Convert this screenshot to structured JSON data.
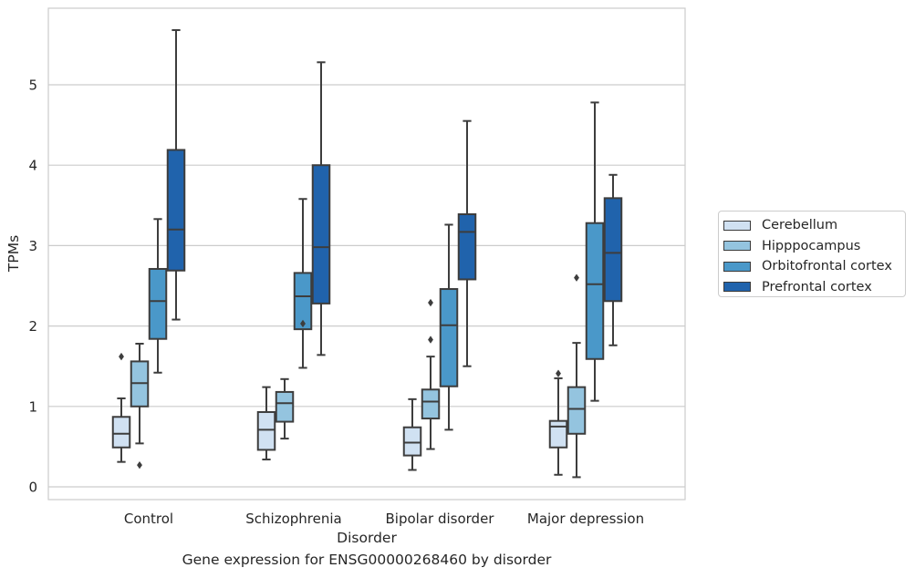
{
  "chart_data": {
    "type": "boxplot",
    "xlabel": "Disorder",
    "ylabel": "TPMs",
    "caption": "Gene expression for ENSG00000268460 by disorder",
    "ylim": [
      -0.15,
      5.95
    ],
    "yticks": [
      "0",
      "1",
      "2",
      "3",
      "4",
      "5"
    ],
    "grid": true,
    "legend_position": "right",
    "categories": [
      "Control",
      "Schizophrenia",
      "Bipolar disorder",
      "Major depression"
    ],
    "series": [
      {
        "name": "Cerebellum",
        "color": "#d0e1f2",
        "boxes": [
          {
            "whislo": 0.31,
            "q1": 0.49,
            "med": 0.66,
            "q3": 0.87,
            "whishi": 1.1,
            "fliers": [
              1.62
            ]
          },
          {
            "whislo": 0.34,
            "q1": 0.46,
            "med": 0.71,
            "q3": 0.93,
            "whishi": 1.24,
            "fliers": []
          },
          {
            "whislo": 0.21,
            "q1": 0.39,
            "med": 0.55,
            "q3": 0.74,
            "whishi": 1.09,
            "fliers": []
          },
          {
            "whislo": 0.15,
            "q1": 0.49,
            "med": 0.75,
            "q3": 0.82,
            "whishi": 1.35,
            "fliers": [
              1.41
            ]
          }
        ]
      },
      {
        "name": "Hipppocampus",
        "color": "#94c4df",
        "boxes": [
          {
            "whislo": 0.54,
            "q1": 1.0,
            "med": 1.29,
            "q3": 1.56,
            "whishi": 1.78,
            "fliers": [
              0.27
            ]
          },
          {
            "whislo": 0.6,
            "q1": 0.81,
            "med": 1.04,
            "q3": 1.18,
            "whishi": 1.34,
            "fliers": []
          },
          {
            "whislo": 0.47,
            "q1": 0.85,
            "med": 1.06,
            "q3": 1.21,
            "whishi": 1.62,
            "fliers": [
              1.83,
              2.29
            ]
          },
          {
            "whislo": 0.12,
            "q1": 0.66,
            "med": 0.97,
            "q3": 1.24,
            "whishi": 1.79,
            "fliers": [
              2.6
            ]
          }
        ]
      },
      {
        "name": "Orbitofrontal cortex",
        "color": "#4a98c9",
        "boxes": [
          {
            "whislo": 1.42,
            "q1": 1.84,
            "med": 2.31,
            "q3": 2.71,
            "whishi": 3.33,
            "fliers": []
          },
          {
            "whislo": 1.48,
            "q1": 1.96,
            "med": 2.37,
            "q3": 2.66,
            "whishi": 3.58,
            "fliers": [
              2.03
            ]
          },
          {
            "whislo": 0.71,
            "q1": 1.25,
            "med": 2.01,
            "q3": 2.46,
            "whishi": 3.26,
            "fliers": []
          },
          {
            "whislo": 1.07,
            "q1": 1.59,
            "med": 2.52,
            "q3": 3.28,
            "whishi": 4.78,
            "fliers": []
          }
        ]
      },
      {
        "name": "Prefrontal cortex",
        "color": "#2063ac",
        "boxes": [
          {
            "whislo": 2.08,
            "q1": 2.69,
            "med": 3.2,
            "q3": 4.19,
            "whishi": 5.68,
            "fliers": []
          },
          {
            "whislo": 1.64,
            "q1": 2.28,
            "med": 2.98,
            "q3": 4.0,
            "whishi": 5.28,
            "fliers": []
          },
          {
            "whislo": 1.5,
            "q1": 2.58,
            "med": 3.17,
            "q3": 3.39,
            "whishi": 4.55,
            "fliers": []
          },
          {
            "whislo": 1.76,
            "q1": 2.31,
            "med": 2.91,
            "q3": 3.59,
            "whishi": 3.88,
            "fliers": []
          }
        ]
      }
    ]
  }
}
